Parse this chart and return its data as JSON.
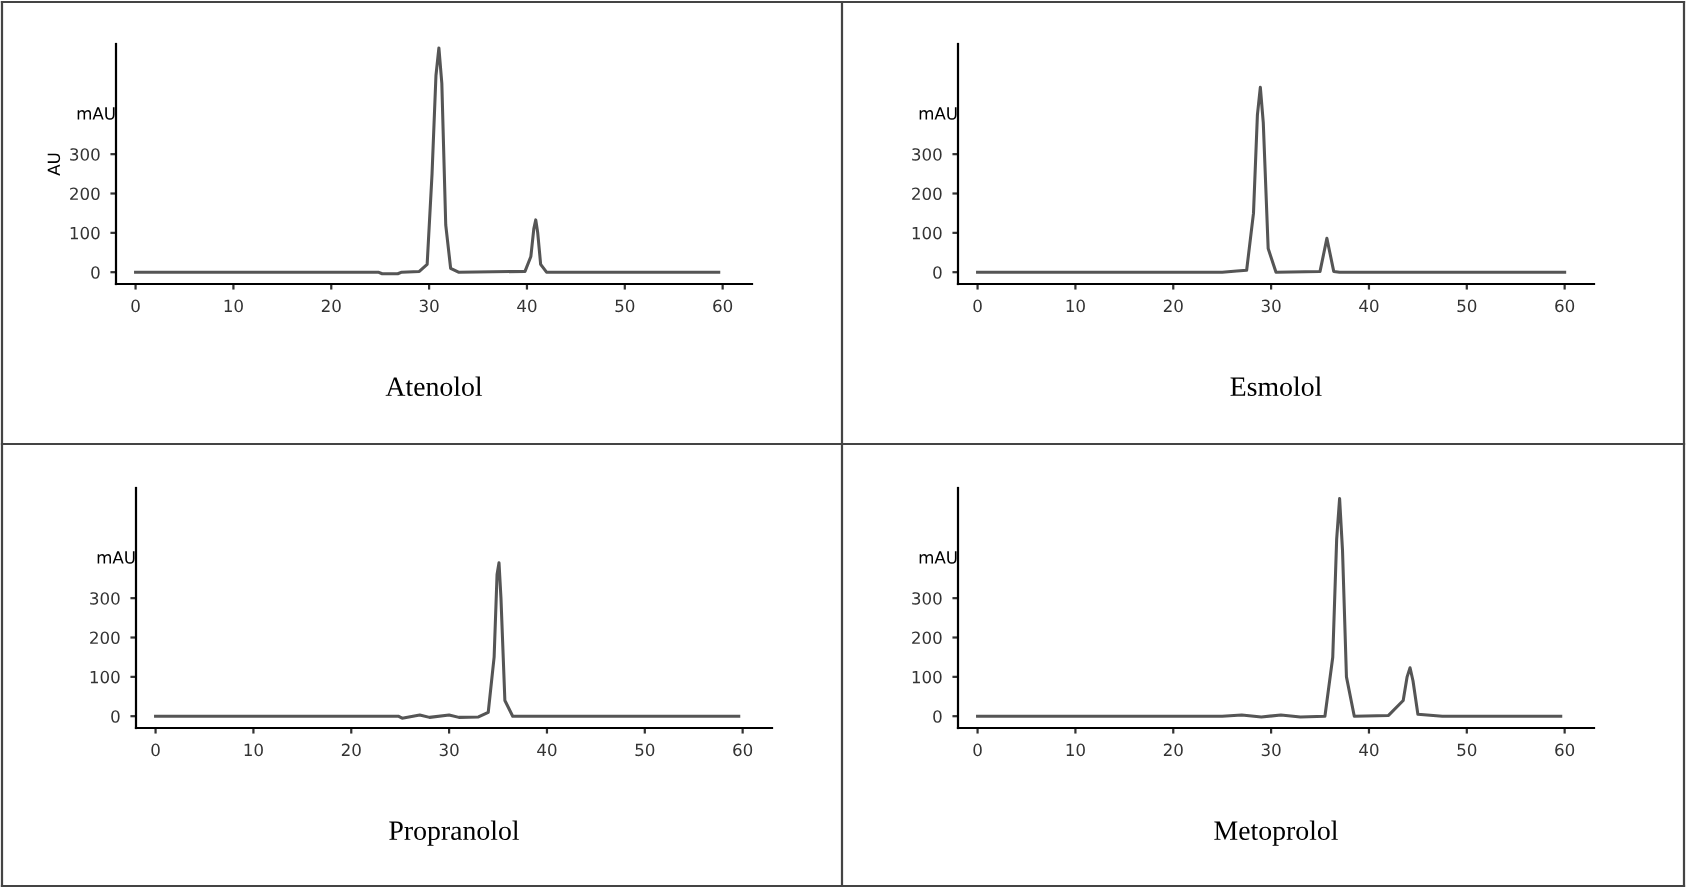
{
  "chart_data": [
    {
      "type": "line",
      "xlabel": "Atenolol",
      "ylabel": "AU",
      "annotations": [
        "mAU"
      ],
      "xlim": [
        -2,
        63
      ],
      "ylim": [
        -30,
        580
      ],
      "xticks": [
        0,
        10,
        20,
        30,
        40,
        50,
        60
      ],
      "yticks": [
        0,
        100,
        200,
        300
      ],
      "grid": false,
      "legend": false,
      "marker": "none",
      "line_style": "solid",
      "series": [
        {
          "color": "#555555",
          "x": [
            0,
            24.8,
            25.2,
            26.8,
            27.2,
            29,
            29.8,
            30.3,
            30.7,
            31,
            31.3,
            31.7,
            32.2,
            33,
            39.8,
            40.4,
            40.7,
            40.9,
            41.1,
            41.4,
            42,
            59.6
          ],
          "values": [
            0,
            0,
            -4,
            -4,
            0,
            2,
            20,
            250,
            500,
            570,
            480,
            120,
            10,
            0,
            2,
            40,
            110,
            133,
            100,
            20,
            0,
            0
          ]
        }
      ]
    },
    {
      "type": "line",
      "xlabel": "Esmolol",
      "annotations": [
        "mAU"
      ],
      "xlim": [
        -2,
        63
      ],
      "ylim": [
        -30,
        580
      ],
      "xticks": [
        0,
        10,
        20,
        30,
        40,
        50,
        60
      ],
      "yticks": [
        0,
        100,
        200,
        300
      ],
      "grid": false,
      "legend": false,
      "marker": "none",
      "line_style": "solid",
      "series": [
        {
          "color": "#555555",
          "x": [
            0,
            25,
            26.5,
            27.5,
            28.2,
            28.6,
            28.9,
            29.2,
            29.7,
            30.5,
            35,
            35.4,
            35.7,
            36,
            36.4,
            37,
            60
          ],
          "values": [
            0,
            0,
            3,
            5,
            150,
            400,
            470,
            380,
            60,
            0,
            2,
            50,
            86,
            50,
            2,
            0,
            0
          ]
        }
      ]
    },
    {
      "type": "line",
      "xlabel": "Propranolol",
      "annotations": [
        "mAU"
      ],
      "xlim": [
        -2,
        63
      ],
      "ylim": [
        -30,
        580
      ],
      "xticks": [
        0,
        10,
        20,
        30,
        40,
        50,
        60
      ],
      "yticks": [
        0,
        100,
        200,
        300
      ],
      "grid": false,
      "legend": false,
      "marker": "none",
      "line_style": "solid",
      "series": [
        {
          "color": "#555555",
          "x": [
            0,
            24.8,
            25.2,
            27,
            28,
            30,
            31,
            33,
            34,
            34.6,
            34.9,
            35.1,
            35.3,
            35.7,
            36.5,
            59.6
          ],
          "values": [
            0,
            0,
            -5,
            3,
            -3,
            3,
            -3,
            -2,
            10,
            150,
            360,
            390,
            300,
            40,
            0,
            0
          ]
        }
      ]
    },
    {
      "type": "line",
      "xlabel": "Metoprolol",
      "annotations": [
        "mAU"
      ],
      "xlim": [
        -2,
        63
      ],
      "ylim": [
        -30,
        580
      ],
      "xticks": [
        0,
        10,
        20,
        30,
        40,
        50,
        60
      ],
      "yticks": [
        0,
        100,
        200,
        300
      ],
      "grid": false,
      "legend": false,
      "marker": "none",
      "line_style": "solid",
      "series": [
        {
          "color": "#555555",
          "x": [
            0,
            25,
            27,
            29,
            31,
            33,
            35.5,
            36.3,
            36.7,
            37,
            37.3,
            37.7,
            38.5,
            42,
            43.5,
            43.9,
            44.2,
            44.5,
            45,
            47.5,
            59.6
          ],
          "values": [
            0,
            0,
            3,
            -2,
            3,
            -2,
            0,
            150,
            450,
            553,
            420,
            100,
            0,
            2,
            40,
            100,
            123,
            90,
            5,
            0,
            0
          ]
        }
      ]
    }
  ]
}
